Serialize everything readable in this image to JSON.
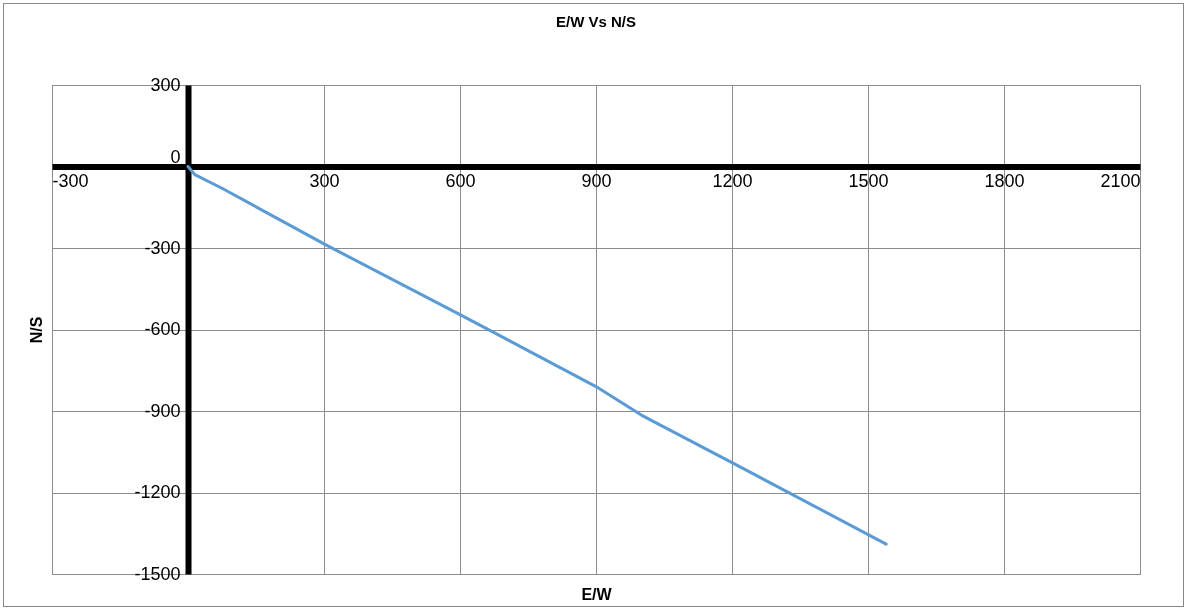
{
  "chart_data": {
    "type": "line",
    "title": "E/W Vs N/S",
    "xlabel": "E/W",
    "ylabel": "N/S",
    "x": [
      0,
      15,
      75,
      300,
      600,
      900,
      1000,
      1200,
      1540
    ],
    "series": [
      {
        "color": "#5b9bd5",
        "values": [
          0,
          -30,
          -80,
          -285,
          -545,
          -810,
          -915,
          -1090,
          -1390
        ]
      }
    ],
    "xlim": [
      -300,
      2100
    ],
    "xticks": [
      -300,
      300,
      600,
      900,
      1200,
      1500,
      1800,
      2100
    ],
    "ylim": [
      -1500,
      300
    ],
    "yticks": [
      -1500,
      -1200,
      -900,
      -600,
      -300,
      0,
      300
    ],
    "grid": true,
    "legend": false
  }
}
